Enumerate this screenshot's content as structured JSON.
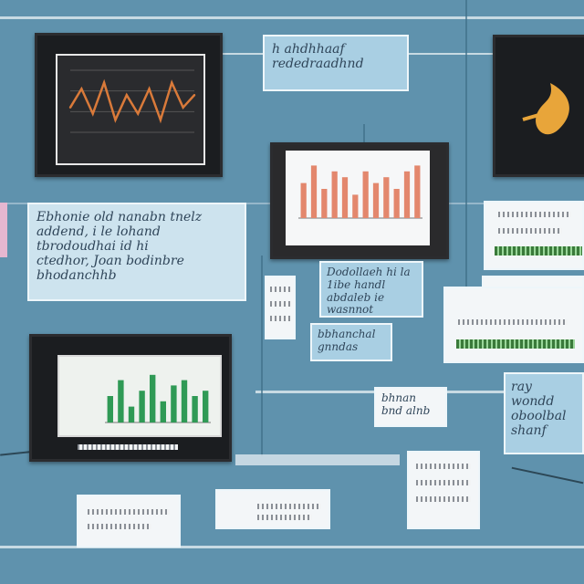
{
  "colors": {
    "background": "#5f92ad",
    "card": "#cde3ee",
    "dark_panel": "#1b1d20",
    "orange_line": "#d97a3a",
    "green_bar": "#2f9a55",
    "salmon_bar": "#e3876d"
  },
  "texts": {
    "top_note": "h ahdhhaaf \nrededraadhnd",
    "left_note": "Ebhonie old nanabn tnelz\naddend, i le lohand\ntbrodoudhai id hi\nctedhor, Joan bodinbre\nbhodanchhb",
    "mid_note_a": "Dodollaeh hi la\n1ibe handl\nabdaleb ie\nwasnnot",
    "mid_note_b": "bbhanchal\ngnndas",
    "mid_note_c": "bhnan\nbnd alnb",
    "right_note": "ray wondd\noboolbal\nshanf"
  },
  "chart_data": [
    {
      "type": "line",
      "x": [
        1,
        2,
        3,
        4,
        5,
        6,
        7,
        8,
        9,
        10,
        11,
        12
      ],
      "y": [
        4,
        7,
        3,
        8,
        2,
        6,
        3,
        7,
        2,
        8,
        4,
        6
      ],
      "ylim": [
        0,
        10
      ]
    },
    {
      "type": "bar",
      "categories": [
        "1",
        "2",
        "3",
        "4",
        "5",
        "6",
        "7",
        "8",
        "9",
        "10",
        "11",
        "12"
      ],
      "values": [
        6,
        9,
        5,
        8,
        7,
        4,
        8,
        6,
        7,
        5,
        8,
        9
      ],
      "ylim": [
        0,
        10
      ]
    },
    {
      "type": "bar",
      "categories": [
        "1",
        "2",
        "3",
        "4",
        "5",
        "6",
        "7",
        "8",
        "9",
        "10"
      ],
      "values": [
        5,
        8,
        3,
        6,
        9,
        4,
        7,
        8,
        5,
        6
      ],
      "ylim": [
        0,
        10
      ]
    }
  ]
}
